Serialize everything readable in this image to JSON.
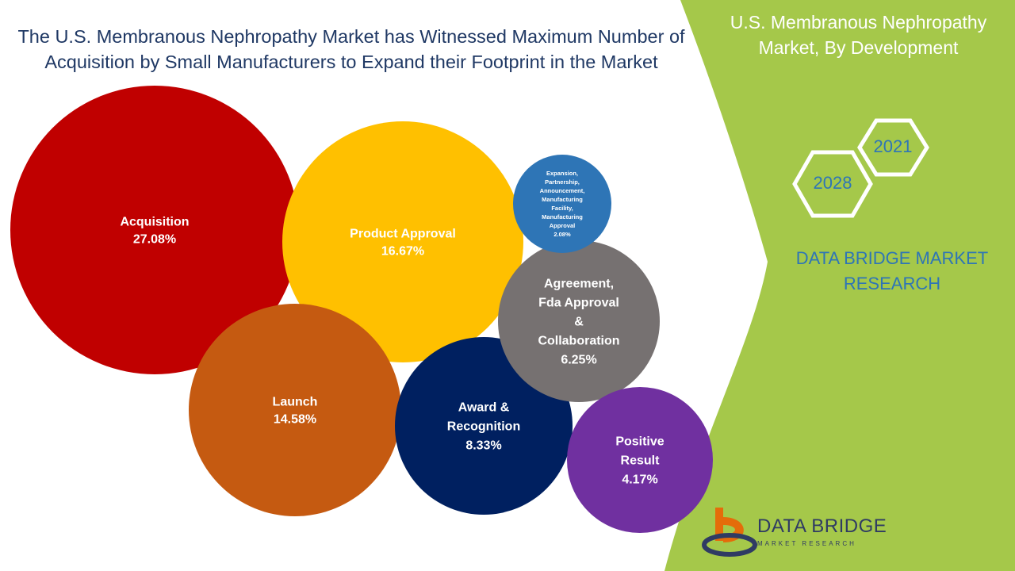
{
  "title": "The U.S. Membranous Nephropathy Market has Witnessed Maximum Number of Acquisition by Small Manufacturers to Expand their Footprint in the Market",
  "side_panel": {
    "title": "U.S. Membranous Nephropathy Market, By Development",
    "years": [
      "2021",
      "2028"
    ],
    "brand_text": "DATA BRIDGE MARKET RESEARCH"
  },
  "logo": {
    "name": "DATA BRIDGE",
    "sub": "MARKET RESEARCH"
  },
  "colors": {
    "panel_green": "#a5c84a",
    "title_blue": "#1f3864",
    "brand_blue": "#2e75b6"
  },
  "chart_data": {
    "type": "bubble",
    "unit": "%",
    "series": [
      {
        "label": "Acquisition",
        "value": 27.08,
        "color": "#c00000"
      },
      {
        "label": "Product Approval",
        "value": 16.67,
        "color": "#ffc000"
      },
      {
        "label": "Launch",
        "value": 14.58,
        "color": "#c55a11"
      },
      {
        "label": "Award & Recognition",
        "value": 8.33,
        "color": "#002060"
      },
      {
        "label": "Agreement, Fda Approval & Collaboration",
        "value": 6.25,
        "color": "#767171"
      },
      {
        "label": "Positive Result",
        "value": 4.17,
        "color": "#7030a0"
      },
      {
        "label": "Expansion, Partnership, Announcement, Manufacturing Facility, Manufacturing Approval",
        "value": 2.08,
        "color": "#2e75b6"
      }
    ]
  }
}
